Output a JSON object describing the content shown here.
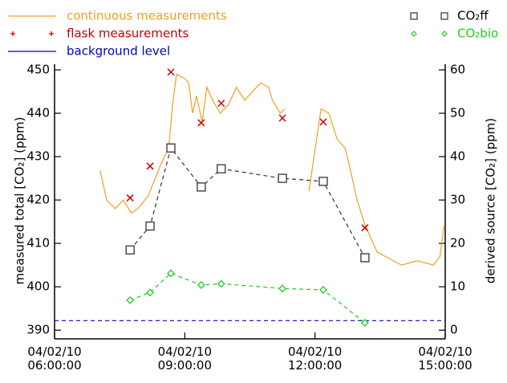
{
  "chart_data": {
    "type": "line",
    "xlim": [
      6,
      15.0
    ],
    "xticks": [
      {
        "value": 6,
        "label": "04/02/10\n06:00:00"
      },
      {
        "value": 9,
        "label": "04/02/10\n09:00:00"
      },
      {
        "value": 12,
        "label": "04/02/10\n12:00:00"
      },
      {
        "value": 15,
        "label": "04/02/10\n15:00:00"
      }
    ],
    "ylim": [
      388,
      451.3
    ],
    "yticks": [
      390,
      400,
      410,
      420,
      430,
      440,
      450
    ],
    "y2lim": [
      -2,
      61.3
    ],
    "y2ticks": [
      0,
      10,
      20,
      30,
      40,
      50,
      60
    ],
    "ylabel": "measured total [CO₂] (ppm)",
    "y2label": "derived source [CO₂] (ppm)",
    "series": [
      {
        "name": "continuous measurements",
        "color": "#f0a020",
        "marker": "none",
        "dashed": false,
        "x": [
          7.05,
          7.2,
          7.4,
          7.58,
          7.77,
          7.92,
          8.16,
          8.44,
          8.63,
          8.72,
          8.81,
          9.0,
          9.09,
          9.18,
          9.27,
          9.4,
          9.51,
          9.64,
          9.82,
          10.01,
          10.19,
          10.38,
          10.56,
          10.75,
          10.93,
          11.02,
          11.2,
          11.3,
          11.5,
          11.86,
          12.14,
          12.32,
          12.51,
          12.69,
          12.79,
          12.97,
          13.16,
          13.43,
          13.62,
          13.99,
          14.36,
          14.73,
          14.88,
          14.97
        ],
        "values": [
          426.8,
          420,
          418,
          420,
          417,
          418,
          421,
          428,
          432,
          442,
          449,
          448,
          447,
          440,
          444,
          438,
          446,
          443,
          440,
          442,
          446,
          443,
          445,
          447,
          446,
          443,
          440,
          441,
          null,
          422,
          441,
          440,
          434,
          432,
          428,
          420,
          414,
          408,
          407,
          405,
          406,
          405,
          407,
          414
        ]
      },
      {
        "name": "flask measurements",
        "color": "#cc0000",
        "marker": "x",
        "dashed": false,
        "x": [
          7.74,
          8.2,
          8.68,
          9.38,
          9.84,
          11.25,
          12.19,
          13.15
        ],
        "values": [
          420.5,
          427.8,
          449.5,
          437.8,
          442.3,
          438.9,
          438.0,
          413.6
        ]
      },
      {
        "name": "background level",
        "color": "#0000cc",
        "marker": "none",
        "dashed": true,
        "x": [
          6,
          15
        ],
        "values": [
          392.2,
          392.2
        ]
      },
      {
        "name": "CO₂ff",
        "color": "#333333",
        "marker": "square",
        "dashed": true,
        "axis": "y2",
        "x": [
          7.74,
          8.2,
          8.68,
          9.38,
          9.84,
          11.25,
          12.19,
          13.15
        ],
        "values": [
          18.5,
          24,
          42,
          33,
          37.2,
          35,
          34.3,
          16.7
        ]
      },
      {
        "name": "CO₂bio",
        "color": "#22cc22",
        "marker": "diamond",
        "dashed": true,
        "axis": "y2",
        "x": [
          7.74,
          8.2,
          8.68,
          9.38,
          9.84,
          11.25,
          12.19,
          13.15
        ],
        "values": [
          6.9,
          8.7,
          13.1,
          10.4,
          10.7,
          9.6,
          9.3,
          1.7
        ]
      }
    ]
  }
}
